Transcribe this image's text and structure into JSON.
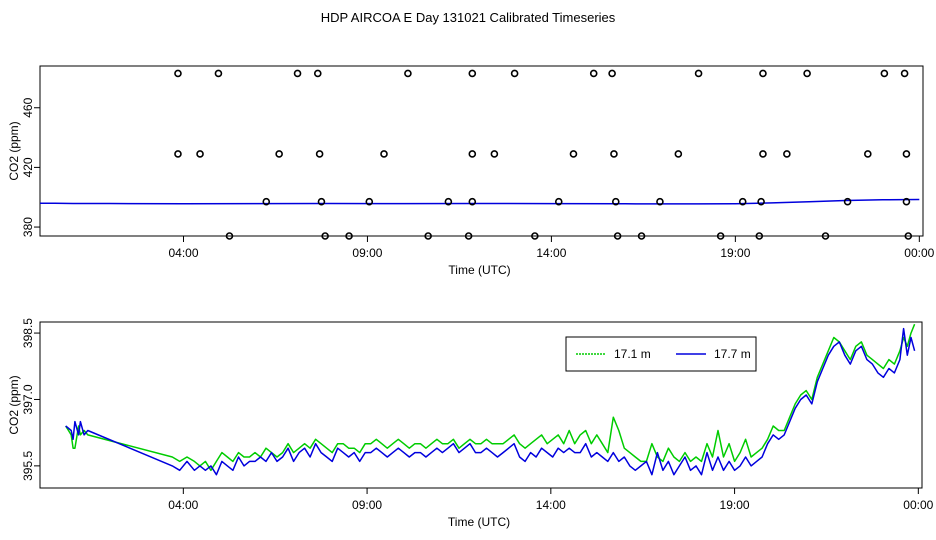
{
  "page": {
    "title": "HDP AIRCOA E  Day 131021  Calibrated Timeseries"
  },
  "colors": {
    "green": "#00cc00",
    "blue": "#0000dd",
    "axis": "#000000"
  },
  "chart_data": [
    {
      "type": "scatter",
      "title": "HDP AIRCOA E  Day 131021  Calibrated Timeseries",
      "xlabel": "Time (UTC)",
      "ylabel": "CO2 (ppm)",
      "xlim_hours": [
        0.1,
        24.1
      ],
      "ylim": [
        374,
        488
      ],
      "xticks": [
        {
          "h": 4,
          "label": "04:00"
        },
        {
          "h": 9,
          "label": "09:00"
        },
        {
          "h": 14,
          "label": "14:00"
        },
        {
          "h": 19,
          "label": "19:00"
        },
        {
          "h": 24,
          "label": "00:00"
        }
      ],
      "yticks": [
        {
          "v": 380,
          "label": "380"
        },
        {
          "v": 420,
          "label": "420"
        },
        {
          "v": 460,
          "label": "460"
        }
      ],
      "points": [
        [
          3.85,
          483
        ],
        [
          4.95,
          483
        ],
        [
          7.1,
          483
        ],
        [
          7.65,
          483
        ],
        [
          10.1,
          483
        ],
        [
          11.85,
          483
        ],
        [
          13.0,
          483
        ],
        [
          15.15,
          483
        ],
        [
          15.65,
          483
        ],
        [
          18.0,
          483
        ],
        [
          19.75,
          483
        ],
        [
          20.95,
          483
        ],
        [
          23.05,
          483
        ],
        [
          23.6,
          483
        ],
        [
          3.85,
          429
        ],
        [
          4.45,
          429
        ],
        [
          6.6,
          429
        ],
        [
          7.7,
          429
        ],
        [
          9.45,
          429
        ],
        [
          11.85,
          429
        ],
        [
          12.45,
          429
        ],
        [
          14.6,
          429
        ],
        [
          15.7,
          429
        ],
        [
          17.45,
          429
        ],
        [
          19.75,
          429
        ],
        [
          20.4,
          429
        ],
        [
          22.6,
          429
        ],
        [
          23.65,
          429
        ],
        [
          6.25,
          397
        ],
        [
          7.75,
          397
        ],
        [
          9.05,
          397
        ],
        [
          11.2,
          397
        ],
        [
          11.85,
          397
        ],
        [
          14.2,
          397
        ],
        [
          15.75,
          397
        ],
        [
          16.95,
          397
        ],
        [
          19.2,
          397
        ],
        [
          19.7,
          397
        ],
        [
          22.05,
          397
        ],
        [
          23.65,
          397
        ],
        [
          5.25,
          374
        ],
        [
          7.85,
          374
        ],
        [
          8.5,
          374
        ],
        [
          10.65,
          374
        ],
        [
          11.75,
          374
        ],
        [
          13.55,
          374
        ],
        [
          15.8,
          374
        ],
        [
          16.45,
          374
        ],
        [
          18.6,
          374
        ],
        [
          19.65,
          374
        ],
        [
          21.45,
          374
        ],
        [
          23.7,
          374
        ]
      ],
      "series": [
        {
          "name": "",
          "color": "#0000dd",
          "x": [
            0.1,
            0.5,
            1.0,
            2.0,
            4.0,
            6.0,
            8.0,
            10.0,
            12.0,
            14.0,
            16.0,
            18.0,
            19.0,
            20.0,
            21.0,
            22.0,
            23.0,
            24.0
          ],
          "y": [
            396.0,
            396.0,
            395.8,
            395.8,
            395.6,
            395.7,
            395.8,
            395.7,
            395.8,
            395.7,
            395.6,
            395.5,
            395.6,
            396.2,
            397.0,
            397.8,
            398.3,
            398.5
          ]
        }
      ]
    },
    {
      "type": "line",
      "xlabel": "Time (UTC)",
      "ylabel": "CO2 (ppm)",
      "xlim_hours": [
        0.1,
        24.1
      ],
      "ylim": [
        395.0,
        398.75
      ],
      "xticks": [
        {
          "h": 4,
          "label": "04:00"
        },
        {
          "h": 9,
          "label": "09:00"
        },
        {
          "h": 14,
          "label": "14:00"
        },
        {
          "h": 19,
          "label": "19:00"
        },
        {
          "h": 24,
          "label": "00:00"
        }
      ],
      "yticks": [
        {
          "v": 395.5,
          "label": "395.5"
        },
        {
          "v": 397.0,
          "label": "397.0"
        },
        {
          "v": 398.5,
          "label": "398.5"
        }
      ],
      "legend": {
        "position": "top-right"
      },
      "series": [
        {
          "name": "17.1 m",
          "color": "#00cc00",
          "x": [
            0.8,
            0.95,
            1.0,
            1.05,
            1.15,
            1.2,
            1.3,
            1.4,
            3.7,
            3.9,
            4.1,
            4.3,
            4.45,
            4.6,
            4.75,
            4.9,
            5.05,
            5.2,
            5.35,
            5.5,
            5.65,
            5.8,
            5.95,
            6.1,
            6.25,
            6.4,
            6.55,
            6.7,
            6.85,
            7.0,
            7.15,
            7.3,
            7.45,
            7.6,
            7.75,
            7.9,
            8.05,
            8.2,
            8.35,
            8.5,
            8.65,
            8.8,
            8.95,
            9.1,
            9.25,
            9.4,
            9.55,
            9.7,
            9.85,
            10.0,
            10.15,
            10.3,
            10.45,
            10.6,
            10.75,
            10.9,
            11.05,
            11.2,
            11.35,
            11.5,
            11.65,
            11.8,
            11.95,
            12.1,
            12.25,
            12.4,
            12.55,
            12.7,
            12.85,
            13.0,
            13.15,
            13.3,
            13.45,
            13.6,
            13.75,
            13.9,
            14.05,
            14.2,
            14.35,
            14.5,
            14.65,
            14.8,
            14.95,
            15.1,
            15.25,
            15.4,
            15.55,
            15.7,
            15.85,
            16.0,
            16.15,
            16.3,
            16.45,
            16.6,
            16.75,
            16.9,
            17.05,
            17.2,
            17.35,
            17.5,
            17.65,
            17.8,
            17.95,
            18.1,
            18.25,
            18.4,
            18.55,
            18.7,
            18.85,
            19.0,
            19.15,
            19.3,
            19.45,
            19.6,
            19.75,
            19.9,
            20.05,
            20.2,
            20.35,
            20.5,
            20.65,
            20.8,
            20.95,
            21.1,
            21.25,
            21.4,
            21.55,
            21.7,
            21.85,
            22.0,
            22.15,
            22.3,
            22.45,
            22.6,
            22.75,
            22.9,
            23.05,
            23.2,
            23.35,
            23.5,
            23.6,
            23.7,
            23.8,
            23.9
          ],
          "y": [
            396.4,
            396.2,
            395.9,
            395.9,
            396.4,
            396.2,
            396.3,
            396.2,
            395.7,
            395.6,
            395.7,
            395.6,
            395.5,
            395.6,
            395.4,
            395.6,
            395.8,
            395.7,
            395.6,
            395.8,
            395.7,
            395.7,
            395.8,
            395.7,
            395.9,
            395.8,
            395.7,
            395.8,
            396.0,
            395.8,
            395.9,
            396.0,
            395.9,
            396.1,
            396.0,
            395.9,
            395.8,
            396.0,
            396.0,
            395.9,
            395.9,
            395.8,
            396.0,
            396.0,
            396.1,
            396.0,
            395.9,
            396.0,
            396.1,
            396.0,
            395.9,
            396.0,
            396.0,
            395.9,
            396.0,
            396.1,
            396.0,
            396.0,
            396.1,
            395.9,
            396.0,
            396.1,
            396.0,
            396.0,
            396.1,
            396.0,
            396.0,
            396.0,
            396.1,
            396.2,
            396.0,
            395.9,
            396.0,
            396.1,
            396.2,
            396.0,
            396.1,
            396.2,
            396.0,
            396.3,
            396.0,
            396.2,
            396.3,
            396.0,
            396.2,
            396.0,
            395.8,
            396.6,
            396.3,
            395.9,
            395.8,
            395.7,
            395.6,
            395.6,
            396.0,
            395.7,
            395.6,
            395.9,
            395.7,
            395.6,
            395.8,
            395.6,
            395.7,
            395.6,
            396.0,
            395.7,
            396.3,
            395.7,
            396.0,
            395.6,
            395.8,
            396.1,
            395.7,
            395.8,
            395.9,
            396.1,
            396.4,
            396.3,
            396.3,
            396.6,
            396.9,
            397.1,
            397.2,
            397.0,
            397.5,
            397.8,
            398.1,
            398.4,
            398.3,
            398.1,
            397.9,
            398.2,
            398.3,
            398.0,
            397.9,
            397.8,
            397.7,
            397.9,
            397.8,
            398.1,
            398.4,
            398.2,
            398.5,
            398.7
          ],
          "dash": true
        },
        {
          "name": "17.7 m",
          "color": "#0000dd",
          "x": [
            0.8,
            0.95,
            1.0,
            1.05,
            1.15,
            1.2,
            1.3,
            1.4,
            3.7,
            3.9,
            4.1,
            4.3,
            4.45,
            4.6,
            4.75,
            4.9,
            5.05,
            5.2,
            5.35,
            5.5,
            5.65,
            5.8,
            5.95,
            6.1,
            6.25,
            6.4,
            6.55,
            6.7,
            6.85,
            7.0,
            7.15,
            7.3,
            7.45,
            7.6,
            7.75,
            7.9,
            8.05,
            8.2,
            8.35,
            8.5,
            8.65,
            8.8,
            8.95,
            9.1,
            9.25,
            9.4,
            9.55,
            9.7,
            9.85,
            10.0,
            10.15,
            10.3,
            10.45,
            10.6,
            10.75,
            10.9,
            11.05,
            11.2,
            11.35,
            11.5,
            11.65,
            11.8,
            11.95,
            12.1,
            12.25,
            12.4,
            12.55,
            12.7,
            12.85,
            13.0,
            13.15,
            13.3,
            13.45,
            13.6,
            13.75,
            13.9,
            14.05,
            14.2,
            14.35,
            14.5,
            14.65,
            14.8,
            14.95,
            15.1,
            15.25,
            15.4,
            15.55,
            15.7,
            15.85,
            16.0,
            16.15,
            16.3,
            16.45,
            16.6,
            16.75,
            16.9,
            17.05,
            17.2,
            17.35,
            17.5,
            17.65,
            17.8,
            17.95,
            18.1,
            18.25,
            18.4,
            18.55,
            18.7,
            18.85,
            19.0,
            19.15,
            19.3,
            19.45,
            19.6,
            19.75,
            19.9,
            20.05,
            20.2,
            20.35,
            20.5,
            20.65,
            20.8,
            20.95,
            21.1,
            21.25,
            21.4,
            21.55,
            21.7,
            21.85,
            22.0,
            22.15,
            22.3,
            22.45,
            22.6,
            22.75,
            22.9,
            23.05,
            23.2,
            23.35,
            23.5,
            23.6,
            23.7,
            23.8,
            23.9
          ],
          "y": [
            396.4,
            396.3,
            396.1,
            396.5,
            396.2,
            396.5,
            396.2,
            396.3,
            395.5,
            395.4,
            395.6,
            395.4,
            395.5,
            395.4,
            395.5,
            395.3,
            395.6,
            395.5,
            395.4,
            395.7,
            395.5,
            395.6,
            395.6,
            395.7,
            395.6,
            395.8,
            395.6,
            395.7,
            395.9,
            395.6,
            395.8,
            395.9,
            395.7,
            396.0,
            395.8,
            395.7,
            395.6,
            395.9,
            395.8,
            395.7,
            395.8,
            395.6,
            395.8,
            395.8,
            395.9,
            395.8,
            395.7,
            395.8,
            395.9,
            395.8,
            395.7,
            395.8,
            395.8,
            395.7,
            395.8,
            395.9,
            395.8,
            395.9,
            396.0,
            395.8,
            395.9,
            396.0,
            395.8,
            395.8,
            395.9,
            395.8,
            395.7,
            395.8,
            395.9,
            396.0,
            395.7,
            395.6,
            395.8,
            395.7,
            395.9,
            395.8,
            395.7,
            395.9,
            395.8,
            395.9,
            395.8,
            395.8,
            396.0,
            395.7,
            395.8,
            395.7,
            395.6,
            395.8,
            395.6,
            395.7,
            395.5,
            395.4,
            395.5,
            395.6,
            395.3,
            395.8,
            395.4,
            395.6,
            395.3,
            395.5,
            395.7,
            395.4,
            395.5,
            395.3,
            395.8,
            395.4,
            395.7,
            395.4,
            395.6,
            395.4,
            395.5,
            395.7,
            395.5,
            395.6,
            395.7,
            396.0,
            396.2,
            396.1,
            396.2,
            396.5,
            396.8,
            397.0,
            397.1,
            396.9,
            397.4,
            397.7,
            398.0,
            398.2,
            398.3,
            398.0,
            397.8,
            398.1,
            398.2,
            397.9,
            397.8,
            397.6,
            397.5,
            397.7,
            397.6,
            397.9,
            398.6,
            398.0,
            398.4,
            398.1
          ]
        }
      ]
    }
  ]
}
